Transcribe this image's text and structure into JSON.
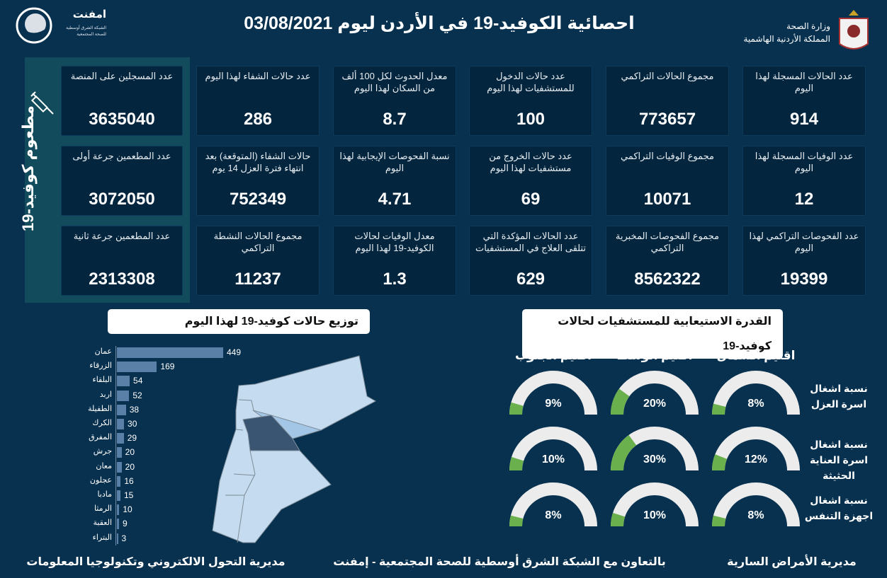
{
  "header": {
    "title": "احصائية الكوفيد-19 في الأردن ليوم  03/08/2021",
    "ministry_line1": "وزارة الصحة",
    "ministry_line2": "المملكة الأردنية الهاشمية",
    "logo_name": "امفنت",
    "logo_sub1": "الشبكة الشرق أوسطية",
    "logo_sub2": "للصحة المجتمعية"
  },
  "colors": {
    "background": "#08314f",
    "card": "#03253d",
    "vaccine_panel": "#124b5c",
    "bar": "#5b80a8",
    "gauge_fill": "#6ab04c",
    "gauge_track": "#ececec"
  },
  "stats": [
    {
      "label": "عدد الحالات المسجلة لهذا اليوم",
      "value": "914"
    },
    {
      "label": "مجموع الحالات التراكمي",
      "value": "773657"
    },
    {
      "label": "عدد حالات الدخول للمستشفيات لهذا اليوم",
      "value": "100"
    },
    {
      "label": "معدل الحدوث لكل 100 ألف من السكان لهذا اليوم",
      "value": "8.7"
    },
    {
      "label": "عدد حالات الشفاء لهذا اليوم",
      "value": "286"
    },
    {
      "label": "عدد الوفيات المسجلة لهذا اليوم",
      "value": "12"
    },
    {
      "label": "مجموع الوفيات التراكمي",
      "value": "10071"
    },
    {
      "label": "عدد حالات الخروج من مستشفيات لهذا اليوم",
      "value": "69"
    },
    {
      "label": "نسبة الفحوصات الإيجابية لهذا اليوم",
      "value": "4.71"
    },
    {
      "label": "حالات الشفاء (المتوقعة) بعد انتهاء فترة العزل 14 يوم",
      "value": "752349"
    },
    {
      "label": "عدد الفحوصات التراكمي لهذا اليوم",
      "value": "19399"
    },
    {
      "label": "مجموع الفحوصات المخبرية التراكمي",
      "value": "8562322"
    },
    {
      "label": "عدد الحالات المؤكدة التي تتلقى العلاج في المستشفيات",
      "value": "629"
    },
    {
      "label": "معدل الوفيات لحالات الكوفيد-19 لهذا اليوم",
      "value": "1.3"
    },
    {
      "label": "مجموع الحالات النشطة التراكمي",
      "value": "11237"
    }
  ],
  "vaccine": {
    "panel_label": "مطعوم كوفيد-19",
    "icon": "syringe-icon",
    "cards": [
      {
        "label": "عدد المسجلين على المنصة",
        "value": "3635040"
      },
      {
        "label": "عدد المطعمين جرعة أولى",
        "value": "3072050"
      },
      {
        "label": "عدد المطعمين جرعة ثانية",
        "value": "2313308"
      }
    ]
  },
  "chart_data": [
    {
      "type": "bar",
      "title": "توزيع حالات كوفيد-19 لهذا اليوم",
      "orientation": "horizontal",
      "categories": [
        "عمان",
        "الزرقاء",
        "البلقاء",
        "اربد",
        "الطفيلة",
        "الكرك",
        "المفرق",
        "جرش",
        "معان",
        "عجلون",
        "مادبا",
        "الرمثا",
        "العقبة",
        "البتراء"
      ],
      "values": [
        449,
        169,
        54,
        52,
        38,
        30,
        29,
        20,
        20,
        16,
        15,
        10,
        9,
        3
      ]
    },
    {
      "type": "gauge",
      "title": "القدرة الاستيعابية للمستشفيات لحالات كوفيد-19",
      "columns": [
        "اقليم الشمال",
        "اقليم الوسط",
        "اقليم الجنوب"
      ],
      "rows": [
        {
          "label": "نسبة اشغال اسرة العزل",
          "values": [
            8,
            20,
            9
          ]
        },
        {
          "label": "نسبة اشغال اسرة العناية الحثيثة",
          "values": [
            12,
            30,
            10
          ]
        },
        {
          "label": "نسبة اشغال اجهزة التنفس",
          "values": [
            8,
            10,
            8
          ]
        }
      ],
      "unit": "%"
    }
  ],
  "footer": {
    "left": "مديرية التحول الالكتروني وتكنولوجيا المعلومات",
    "center": "بالتعاون مع الشبكة الشرق أوسطية للصحة المجتمعية - إمفنت",
    "right": "مديرية الأمراض السارية"
  }
}
